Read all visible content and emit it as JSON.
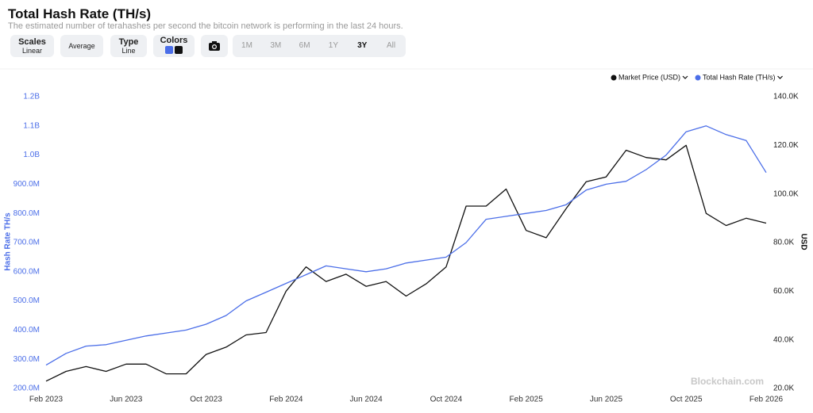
{
  "header": {
    "title": "Total Hash Rate (TH/s)",
    "subtitle": "The estimated number of terahashes per second the bitcoin network is performing in the last 24 hours."
  },
  "controls": {
    "scales": {
      "label": "Scales",
      "value": "Linear"
    },
    "average": "Average",
    "type": {
      "label": "Type",
      "value": "Line"
    },
    "colors": "Colors",
    "ranges": [
      "1M",
      "3M",
      "6M",
      "1Y",
      "3Y",
      "All"
    ],
    "active_range": "3Y"
  },
  "chart_data": {
    "type": "line",
    "x": [
      "Feb 2023",
      "Mar 2023",
      "Apr 2023",
      "May 2023",
      "Jun 2023",
      "Jul 2023",
      "Aug 2023",
      "Sep 2023",
      "Oct 2023",
      "Nov 2023",
      "Dec 2023",
      "Jan 2024",
      "Feb 2024",
      "Mar 2024",
      "Apr 2024",
      "May 2024",
      "Jun 2024",
      "Jul 2024",
      "Aug 2024",
      "Sep 2024",
      "Oct 2024",
      "Nov 2024",
      "Dec 2024",
      "Jan 2025",
      "Feb 2025",
      "Mar 2025",
      "Apr 2025",
      "May 2025",
      "Jun 2025",
      "Jul 2025",
      "Aug 2025",
      "Sep 2025",
      "Oct 2025",
      "Nov 2025",
      "Dec 2025",
      "Jan 2026",
      "Feb 2026"
    ],
    "series": [
      {
        "name": "Market Price (USD)",
        "color": "#111111",
        "axis": "y2",
        "values": [
          23000,
          27000,
          29000,
          27000,
          30000,
          30000,
          26000,
          26000,
          34000,
          37000,
          42000,
          43000,
          60000,
          70000,
          64000,
          67000,
          62000,
          64000,
          58000,
          63000,
          70000,
          95000,
          95000,
          102000,
          85000,
          82000,
          94000,
          105000,
          107000,
          118000,
          115000,
          114000,
          120000,
          92000,
          87000,
          90000,
          88000
        ]
      },
      {
        "name": "Total Hash Rate (TH/s)",
        "color": "#4b6ee8",
        "values": [
          280000000,
          320000000,
          345000000,
          350000000,
          365000000,
          380000000,
          390000000,
          400000000,
          420000000,
          450000000,
          500000000,
          530000000,
          560000000,
          590000000,
          620000000,
          610000000,
          600000000,
          610000000,
          630000000,
          640000000,
          650000000,
          700000000,
          780000000,
          790000000,
          800000000,
          810000000,
          830000000,
          880000000,
          900000000,
          910000000,
          950000000,
          1000000000,
          1080000000,
          1100000000,
          1070000000,
          1050000000,
          940000000
        ]
      }
    ],
    "ylabel": "Hash Rate TH/s",
    "y2label": "USD",
    "ylim": [
      200000000,
      1200000000
    ],
    "yticks": [
      {
        "value": 200000000,
        "label": "200.0M"
      },
      {
        "value": 300000000,
        "label": "300.0M"
      },
      {
        "value": 400000000,
        "label": "400.0M"
      },
      {
        "value": 500000000,
        "label": "500.0M"
      },
      {
        "value": 600000000,
        "label": "600.0M"
      },
      {
        "value": 700000000,
        "label": "700.0M"
      },
      {
        "value": 800000000,
        "label": "800.0M"
      },
      {
        "value": 900000000,
        "label": "900.0M"
      },
      {
        "value": 1000000000,
        "label": "1.0B"
      },
      {
        "value": 1100000000,
        "label": "1.1B"
      },
      {
        "value": 1200000000,
        "label": "1.2B"
      }
    ],
    "y2lim": [
      20000,
      140000
    ],
    "y2ticks": [
      {
        "value": 20000,
        "label": "20.0K"
      },
      {
        "value": 40000,
        "label": "40.0K"
      },
      {
        "value": 60000,
        "label": "60.0K"
      },
      {
        "value": 80000,
        "label": "80.0K"
      },
      {
        "value": 100000,
        "label": "100.0K"
      },
      {
        "value": 120000,
        "label": "120.0K"
      },
      {
        "value": 140000,
        "label": "140.0K"
      }
    ],
    "grid": false,
    "watermark": "Blockchain.com"
  }
}
